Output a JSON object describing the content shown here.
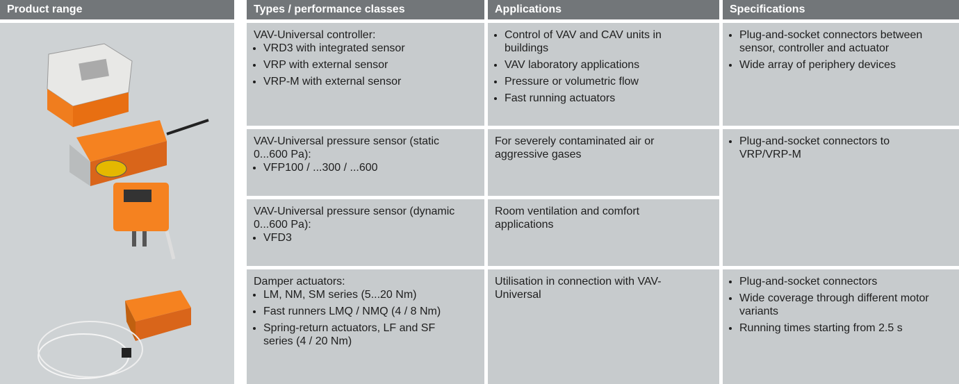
{
  "header": [
    "Product range",
    "Types / performance classes",
    "Applications",
    "Specifications"
  ],
  "rows": [
    {
      "types": {
        "intro": "VAV-Universal controller:",
        "items": [
          "VRD3 with integrated sensor",
          "VRP with external sensor",
          "VRP-M with external sensor"
        ]
      },
      "applications": {
        "items": [
          "Control of VAV and CAV units in buildings",
          "VAV laboratory applications",
          "Pressure or volumetric flow",
          "Fast running actuators"
        ]
      },
      "specifications": {
        "items": [
          "Plug-and-socket connectors between sensor, controller and actuator",
          "Wide array of periphery devices"
        ]
      }
    },
    {
      "types": {
        "intro": "VAV-Universal pressure sensor (static 0...600 Pa):",
        "items": [
          "VFP100 / ...300 / ...600"
        ]
      },
      "applications": {
        "text": "For severely contaminated air or aggressive gases"
      },
      "specifications": {
        "items": [
          "Plug-and-socket connectors to VRP/VRP-M"
        ]
      }
    },
    {
      "types": {
        "intro": "VAV-Universal pressure sensor (dynamic 0...600 Pa):",
        "items": [
          "VFD3"
        ]
      },
      "applications": {
        "text": "Room ventilation and comfort applications"
      }
    },
    {
      "types": {
        "intro": "Damper actuators:",
        "items": [
          "LM, NM, SM series (5...20 Nm)",
          "Fast runners LMQ / NMQ (4 / 8 Nm)",
          "Spring-return actuators, LF and SF series (4 / 20 Nm)"
        ]
      },
      "applications": {
        "text": "Utilisation in connection with VAV-Universal"
      },
      "specifications": {
        "items": [
          "Plug-and-socket connectors",
          "Wide coverage through different motor variants",
          "Running times starting from 2.5 s"
        ]
      }
    }
  ]
}
